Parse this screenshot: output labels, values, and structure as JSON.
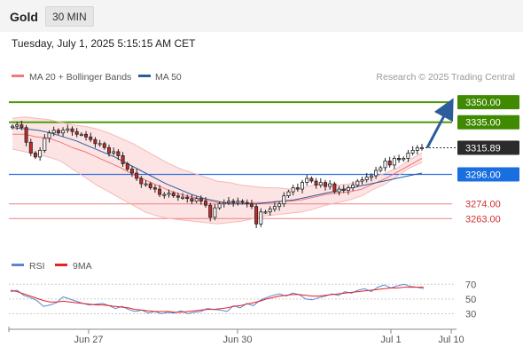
{
  "header": {
    "instrument": "Gold",
    "timeframe": "30 MIN",
    "timestamp": "Tuesday, July 1, 2025 5:15:15 AM CET"
  },
  "legend": {
    "ma20_bb": "MA 20 + Bollinger Bands",
    "ma50": "MA 50",
    "credit": "Research © 2025 Trading Central",
    "rsi": "RSI",
    "rsi_ma": "9MA"
  },
  "colors": {
    "bull_candle": "#ffffff",
    "bear_candle": "#c62828",
    "bollinger_fill": "#fde4e4",
    "ma20": "#f07a7a",
    "ma50": "#2e5c9a",
    "target_line": "#4f9a0b",
    "target_label": "#3f8a00",
    "pivot_line": "#2f6fe0",
    "pivot_label": "#1a6fe0",
    "support_line": "#f08080",
    "support_text": "#d32f2f",
    "last_price_label": "#2b2b2b",
    "arrow": "#2e5c9a",
    "rsi_line": "#5b86d6",
    "rsi_ma_line": "#e32222"
  },
  "chart_data": [
    {
      "type": "candlestick",
      "title": "Gold",
      "timeframe": "30 MIN",
      "x_ticks": [
        "Jun 27",
        "Jun 30",
        "Jul 1",
        "Jul 10"
      ],
      "y_range": [
        3238,
        3360
      ],
      "last_price": 3315.89,
      "levels": [
        {
          "value": 3350.0,
          "kind": "resistance"
        },
        {
          "value": 3335.0,
          "kind": "resistance"
        },
        {
          "value": 3296.0,
          "kind": "pivot"
        },
        {
          "value": 3274.0,
          "kind": "support"
        },
        {
          "value": 3263.0,
          "kind": "support"
        }
      ],
      "projection": {
        "from": 3316,
        "to": 3350,
        "direction": "up"
      },
      "price_path": [
        3332,
        3333,
        3331,
        3320,
        3312,
        3309,
        3314,
        3323,
        3327,
        3329,
        3327,
        3329,
        3330,
        3328,
        3326,
        3326,
        3324,
        3322,
        3319,
        3319,
        3316,
        3312,
        3313,
        3310,
        3304,
        3300,
        3297,
        3293,
        3289,
        3289,
        3286,
        3285,
        3281,
        3281,
        3282,
        3280,
        3279,
        3279,
        3278,
        3276,
        3278,
        3276,
        3273,
        3264,
        3271,
        3274,
        3275,
        3276,
        3275,
        3276,
        3275,
        3274,
        3272,
        3259,
        3268,
        3268,
        3270,
        3272,
        3274,
        3280,
        3283,
        3286,
        3285,
        3290,
        3293,
        3291,
        3288,
        3290,
        3287,
        3289,
        3283,
        3285,
        3284,
        3286,
        3288,
        3291,
        3292,
        3294,
        3295,
        3299,
        3301,
        3306,
        3303,
        3308,
        3307,
        3308,
        3312,
        3314,
        3316,
        3316
      ],
      "indicators": {
        "bollinger_upper": [
          3338,
          3339,
          3338,
          3337,
          3335,
          3333,
          3332,
          3330,
          3327,
          3323,
          3319,
          3314,
          3309,
          3304,
          3300,
          3297,
          3294,
          3291,
          3290,
          3288,
          3287,
          3286,
          3286,
          3285,
          3286,
          3288,
          3289,
          3288,
          3289,
          3291,
          3294,
          3297,
          3301,
          3307,
          3312
        ],
        "bollinger_lower": [
          3315,
          3313,
          3311,
          3309,
          3306,
          3300,
          3294,
          3288,
          3283,
          3278,
          3273,
          3268,
          3265,
          3263,
          3262,
          3261,
          3260,
          3259,
          3260,
          3261,
          3263,
          3265,
          3266,
          3267,
          3268,
          3270,
          3273,
          3275,
          3277,
          3280,
          3285,
          3289,
          3295,
          3301,
          3305
        ],
        "ma20": [
          3326,
          3326,
          3324,
          3323,
          3320,
          3316,
          3313,
          3309,
          3305,
          3301,
          3296,
          3292,
          3288,
          3284,
          3281,
          3279,
          3277,
          3275,
          3275,
          3274,
          3275,
          3275,
          3276,
          3276,
          3277,
          3279,
          3281,
          3282,
          3283,
          3285,
          3289,
          3293,
          3298,
          3303,
          3308
        ],
        "ma50": [
          3331,
          3330,
          3329,
          3327,
          3324,
          3321,
          3317,
          3313,
          3309,
          3304,
          3299,
          3294,
          3289,
          3285,
          3281,
          3278,
          3276,
          3274,
          3274,
          3274,
          3275,
          3276,
          3277,
          3279,
          3281,
          3283,
          3285,
          3287,
          3289,
          3291,
          3293,
          3295,
          3297
        ],
        "legend": [
          "MA 20 + Bollinger Bands",
          "MA 50"
        ]
      }
    },
    {
      "type": "line",
      "name": "RSI",
      "y_ticks": [
        70,
        50,
        30
      ],
      "y_range": [
        15,
        80
      ],
      "series": [
        {
          "name": "RSI",
          "values": [
            60,
            62,
            55,
            52,
            48,
            40,
            42,
            45,
            53,
            50,
            47,
            44,
            42,
            43,
            44,
            41,
            37,
            40,
            36,
            33,
            35,
            31,
            33,
            30,
            32,
            31,
            34,
            30,
            32,
            33,
            37,
            36,
            35,
            33,
            41,
            38,
            44,
            41,
            48,
            52,
            55,
            57,
            54,
            58,
            56,
            50,
            49,
            52,
            54,
            57,
            55,
            60,
            58,
            62,
            64,
            60,
            66,
            69,
            65,
            68,
            70,
            67,
            66,
            64
          ]
        },
        {
          "name": "9MA",
          "values": [
            62,
            60,
            57,
            54,
            51,
            48,
            46,
            46,
            47,
            46,
            45,
            44,
            43,
            42,
            42,
            41,
            40,
            39,
            38,
            36,
            35,
            34,
            33,
            33,
            33,
            32,
            32,
            33,
            34,
            35,
            36,
            36,
            37,
            38,
            40,
            41,
            43,
            45,
            47,
            50,
            52,
            54,
            55,
            56,
            56,
            55,
            54,
            54,
            55,
            56,
            57,
            58,
            59,
            60,
            61,
            62,
            63,
            64,
            65,
            65,
            66,
            66,
            66,
            66
          ]
        }
      ],
      "x_ticks": [
        "Jun 27",
        "Jun 30",
        "Jul 1",
        "Jul 10"
      ]
    }
  ]
}
